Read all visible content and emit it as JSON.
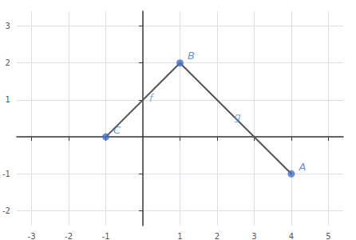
{
  "chart_data": {
    "type": "scatter",
    "xlim": [
      -3.4,
      5.4
    ],
    "ylim": [
      -2.4,
      3.4
    ],
    "xticks": [
      -3,
      -2,
      -1,
      1,
      2,
      3,
      4,
      5
    ],
    "yticks": [
      -2,
      -1,
      1,
      2,
      3
    ],
    "grid": true,
    "series": [
      {
        "type": "line",
        "x": [
          -1,
          1
        ],
        "values": [
          0,
          2
        ],
        "color": "#555555"
      },
      {
        "type": "line",
        "x": [
          1,
          4
        ],
        "values": [
          2,
          -1
        ],
        "color": "#555555"
      },
      {
        "type": "scatter",
        "x": [
          4,
          1,
          -1
        ],
        "values": [
          -1,
          2,
          0
        ],
        "labels": [
          "A",
          "B",
          "C"
        ],
        "color": "#4472c4"
      }
    ],
    "annotations": [
      {
        "text": "f",
        "x": 0.22,
        "y": 1.05,
        "color": "#5b9bd5"
      },
      {
        "text": "g",
        "x": 2.55,
        "y": 0.55,
        "color": "#5b9bd5"
      }
    ]
  }
}
